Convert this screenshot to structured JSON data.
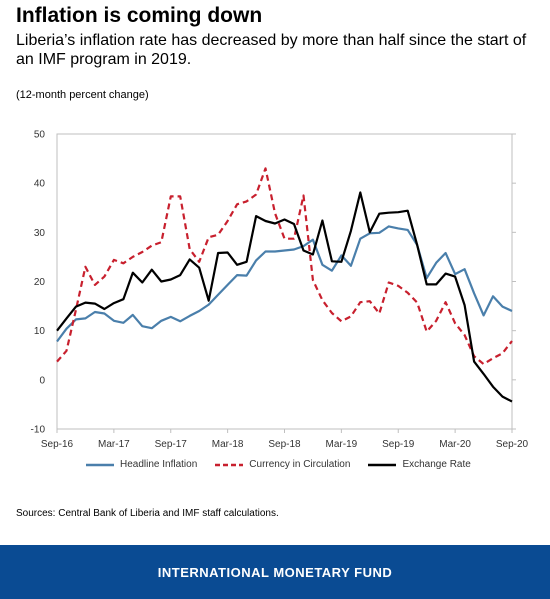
{
  "title": "Inflation is coming down",
  "subtitle": "Liberia’s inflation rate has decreased by more than half since the start of an IMF program in 2019.",
  "units": "(12-month percent change)",
  "sources": "Sources: Central Bank of Liberia and IMF staff calculations.",
  "footer": "INTERNATIONAL MONETARY FUND",
  "chart_data": {
    "type": "line",
    "ylim": [
      -10,
      50
    ],
    "yticks": [
      -10,
      0,
      10,
      20,
      30,
      40,
      50
    ],
    "xticks": [
      "Sep-16",
      "Mar-17",
      "Sep-17",
      "Mar-18",
      "Sep-18",
      "Mar-19",
      "Sep-19",
      "Mar-20",
      "Sep-20"
    ],
    "x": [
      "Sep-16",
      "Oct-16",
      "Nov-16",
      "Dec-16",
      "Jan-17",
      "Feb-17",
      "Mar-17",
      "Apr-17",
      "May-17",
      "Jun-17",
      "Jul-17",
      "Aug-17",
      "Sep-17",
      "Oct-17",
      "Nov-17",
      "Dec-17",
      "Jan-18",
      "Feb-18",
      "Mar-18",
      "Apr-18",
      "May-18",
      "Jun-18",
      "Jul-18",
      "Aug-18",
      "Sep-18",
      "Oct-18",
      "Nov-18",
      "Dec-18",
      "Jan-19",
      "Feb-19",
      "Mar-19",
      "Apr-19",
      "May-19",
      "Jun-19",
      "Jul-19",
      "Aug-19",
      "Sep-19",
      "Oct-19",
      "Nov-19",
      "Dec-19",
      "Jan-20",
      "Feb-20",
      "Mar-20",
      "Apr-20",
      "May-20",
      "Jun-20",
      "Jul-20",
      "Aug-20",
      "Sep-20"
    ],
    "grid": false,
    "legend": "bottom",
    "series": [
      {
        "name": "Headline Inflation",
        "color": "#4a7fab",
        "style": "solid",
        "values": [
          7.8,
          10.4,
          12.3,
          12.5,
          13.8,
          13.5,
          12.0,
          11.6,
          13.2,
          10.9,
          10.5,
          12.0,
          12.8,
          11.9,
          13.0,
          14.0,
          15.3,
          17.3,
          19.3,
          21.3,
          21.2,
          24.3,
          26.1,
          26.1,
          26.3,
          26.5,
          27.2,
          28.5,
          23.4,
          22.2,
          25.3,
          23.2,
          28.7,
          29.8,
          29.9,
          31.2,
          30.8,
          30.5,
          27.4,
          20.7,
          23.8,
          25.8,
          21.5,
          22.5,
          17.6,
          13.1,
          17.0,
          14.9,
          14.0
        ]
      },
      {
        "name": "Currency in Circulation",
        "color": "#c8202e",
        "style": "dashed",
        "values": [
          3.7,
          5.9,
          14.3,
          23.0,
          19.3,
          21.0,
          24.4,
          23.7,
          25.0,
          26.0,
          27.3,
          28.0,
          37.3,
          37.3,
          26.6,
          24.0,
          29.0,
          29.5,
          32.3,
          35.7,
          36.3,
          37.7,
          43.0,
          33.9,
          28.7,
          28.7,
          37.5,
          20.3,
          16.2,
          13.6,
          11.9,
          12.9,
          15.8,
          16.0,
          13.5,
          19.8,
          19.1,
          17.7,
          15.7,
          9.8,
          12.0,
          15.8,
          11.5,
          9.1,
          4.8,
          3.2,
          4.4,
          5.4,
          7.9
        ]
      },
      {
        "name": "Exchange Rate",
        "color": "#000000",
        "style": "solid",
        "values": [
          10.0,
          12.5,
          14.9,
          15.7,
          15.5,
          14.4,
          15.6,
          16.4,
          21.8,
          19.8,
          22.4,
          20.0,
          20.4,
          21.3,
          24.5,
          22.8,
          16.1,
          25.8,
          25.9,
          23.4,
          24.0,
          33.3,
          32.3,
          31.8,
          32.6,
          31.7,
          26.3,
          25.5,
          32.4,
          24.1,
          24.0,
          30.3,
          38.1,
          30.0,
          33.8,
          34.0,
          34.1,
          34.4,
          27.4,
          19.4,
          19.4,
          21.6,
          21.0,
          15.2,
          3.7,
          1.2,
          -1.4,
          -3.4,
          -4.4
        ]
      }
    ]
  }
}
